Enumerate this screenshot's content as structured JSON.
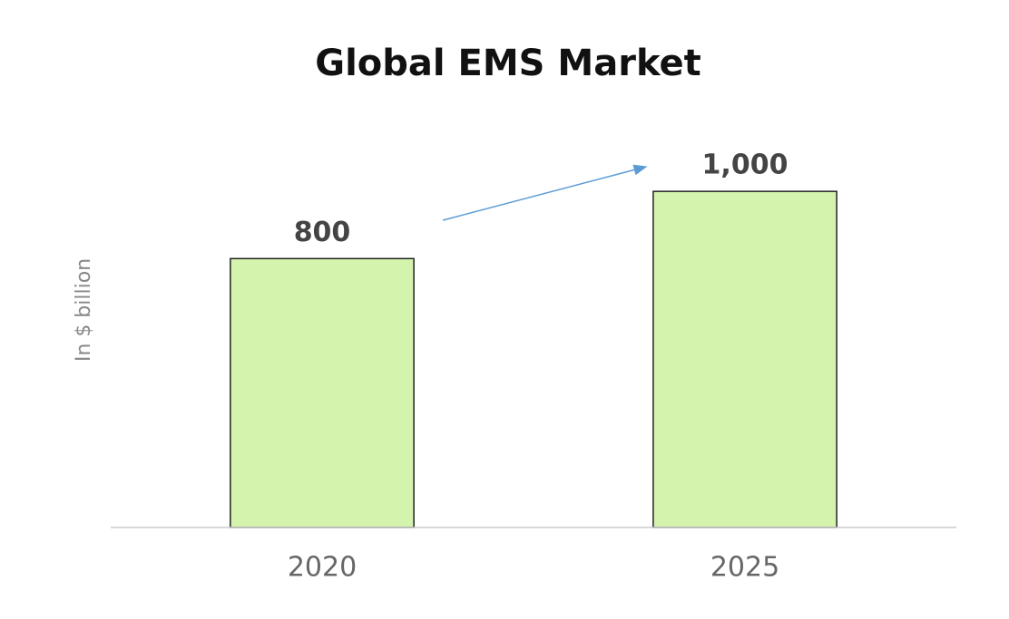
{
  "chart_data": {
    "type": "bar",
    "title": "Global EMS Market",
    "ylabel": "In $ billion",
    "categories": [
      "2020",
      "2025"
    ],
    "values": [
      800,
      1000
    ],
    "value_labels": [
      "800",
      "1,000"
    ],
    "color": "#d4f4ad",
    "ylim": [
      0,
      1200
    ]
  }
}
